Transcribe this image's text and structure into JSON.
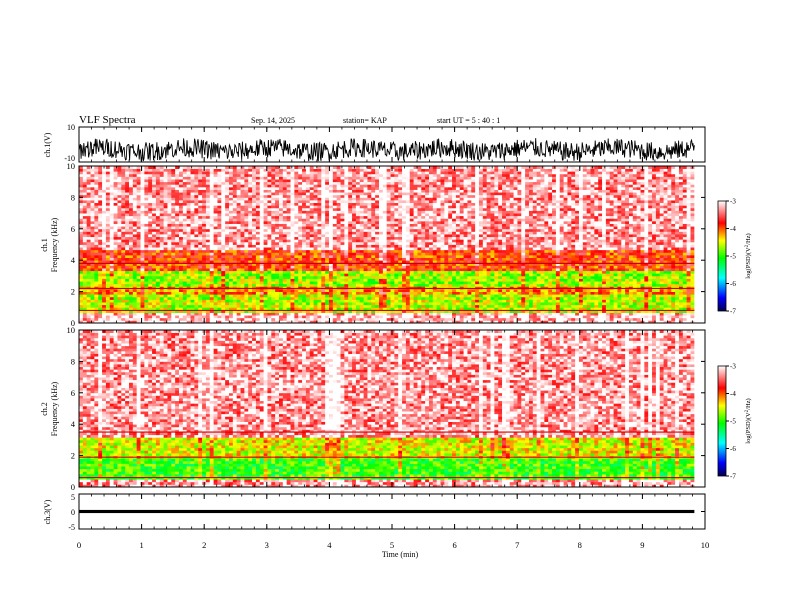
{
  "header": {
    "title": "VLF Spectra",
    "date": "Sep. 14, 2025",
    "station": "station= KAP",
    "start_ut": "start UT =  5 : 40 : 1"
  },
  "chart_data": [
    {
      "type": "line",
      "panel": "ch1-waveform",
      "ylabel": "ch.1(V)",
      "ylim": [
        -10,
        10
      ],
      "y_ticks": [
        "10",
        "-10"
      ],
      "x_range_min": [
        0,
        9.83
      ],
      "description_values": "noisy waveform, mean about -3 V, envelope roughly -8 to 7 V"
    },
    {
      "type": "heatmap",
      "panel": "ch1-spectrogram",
      "ylabel": "ch.1\nFrequency (kHz)",
      "ylabel_top": "ch.1",
      "ylabel_bottom": "Frequency (kHz)",
      "ylim": [
        0,
        10
      ],
      "y_ticks": [
        "0",
        "2",
        "4",
        "6",
        "8",
        "10"
      ],
      "x_range_min": [
        0,
        9.83
      ],
      "colorbar": {
        "label": "log(PSD) (V²/Hz)",
        "label_text": "log(PSD)(V",
        "label_sup": "2",
        "label_tail": "/Hz)",
        "range": [
          -7,
          -3
        ],
        "ticks": [
          "-3",
          "-4",
          "-5",
          "-6",
          "-7"
        ]
      },
      "bands_khz": [
        {
          "from": 0,
          "to": 0.6,
          "level": -3.2
        },
        {
          "from": 0.6,
          "to": 1.8,
          "level": -4.6
        },
        {
          "from": 1.8,
          "to": 2.3,
          "level": -4.2
        },
        {
          "from": 2.3,
          "to": 3.4,
          "level": -4.7
        },
        {
          "from": 3.4,
          "to": 4.6,
          "level": -3.9
        },
        {
          "from": 4.6,
          "to": 10,
          "level": -3.3
        }
      ],
      "lines_khz": [
        0.8,
        2.2,
        3.8
      ]
    },
    {
      "type": "heatmap",
      "panel": "ch2-spectrogram",
      "ylabel": "ch.2\nFrequency (kHz)",
      "ylabel_top": "ch.2",
      "ylabel_bottom": "Frequency (kHz)",
      "ylim": [
        0,
        10
      ],
      "y_ticks": [
        "0",
        "2",
        "4",
        "6",
        "8",
        "10"
      ],
      "x_range_min": [
        0,
        9.83
      ],
      "colorbar": {
        "label": "log(PSD) (V²/Hz)",
        "label_text": "log(PSD)(V",
        "label_sup": "2",
        "label_tail": "/Hz)",
        "range": [
          -7,
          -3
        ],
        "ticks": [
          "-3",
          "-4",
          "-5",
          "-6",
          "-7"
        ]
      },
      "bands_khz": [
        {
          "from": 0,
          "to": 0.5,
          "level": -3.3
        },
        {
          "from": 0.5,
          "to": 1.9,
          "level": -5.0
        },
        {
          "from": 1.9,
          "to": 3.2,
          "level": -4.5
        },
        {
          "from": 3.2,
          "to": 10,
          "level": -3.3
        }
      ],
      "lines_khz": [
        0.6,
        1.9,
        3.5
      ]
    },
    {
      "type": "line",
      "panel": "ch3-waveform",
      "ylabel": "ch.3(V)",
      "ylim": [
        -5,
        5
      ],
      "y_ticks": [
        "5",
        "0",
        "-5"
      ],
      "x_range_min": [
        0,
        9.83
      ],
      "description_values": "nearly constant around 0 V with small oscillation"
    }
  ],
  "x_axis": {
    "label": "Time (min)",
    "range": [
      0,
      10
    ],
    "ticks": [
      "0",
      "1",
      "2",
      "3",
      "4",
      "5",
      "6",
      "7",
      "8",
      "9",
      "10"
    ]
  },
  "colors": {
    "axis": "#000000",
    "trace": "#000000",
    "colormap": [
      "#000080",
      "#0000ff",
      "#00ffff",
      "#00ff00",
      "#ffff00",
      "#ff0000",
      "#ffffff"
    ]
  }
}
